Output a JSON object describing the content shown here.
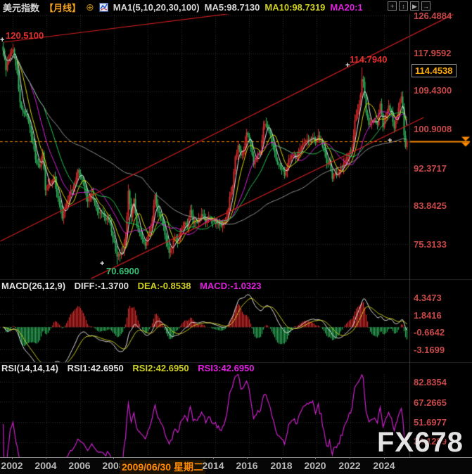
{
  "header": {
    "title": "美元指数",
    "period": "【月线】",
    "add_icon": "⊕",
    "ma_settings": "MA1(5,10,20,30,100)",
    "ma5": "MA5:98.7130",
    "ma10": "MA10:98.7319",
    "ma20": "MA20:1",
    "toolbar": {
      "move": "+",
      "scale": "↕",
      "play": "▶",
      "export": "→"
    }
  },
  "main": {
    "y_ticks": [
      "126.4884",
      "117.9592",
      "109.4300",
      "100.9008",
      "92.3717",
      "83.8425",
      "75.3133"
    ],
    "price_box": "114.4538",
    "annotations": {
      "high1": "120.5100",
      "high2": "114.7940",
      "low": "70.6900",
      "marker": "+"
    }
  },
  "macd": {
    "label": "MACD(26,12,9)",
    "diff": "DIFF:-1.3700",
    "dea": "DEA:-0.8538",
    "macd": "MACD:-1.0323",
    "y_ticks": [
      "4.3473",
      "1.8416",
      "-0.6642",
      "-3.1699"
    ]
  },
  "rsi": {
    "label": "RSI(14,14,14)",
    "rsi1": "RSI1:42.6950",
    "rsi2": "RSI2:42.6950",
    "rsi3": "RSI3:42.6950",
    "y_ticks": [
      "82.8354",
      "67.2665",
      "51.6977",
      "36.1289"
    ]
  },
  "xaxis": {
    "labels": [
      "2002",
      "2004",
      "2006",
      "2008",
      "2014",
      "2016",
      "2018",
      "2020",
      "2022",
      "2024"
    ],
    "selected_date": "2009/06/30 星期二"
  },
  "watermark": "FX678",
  "colors": {
    "up": "#dd2b2b",
    "down": "#2bb35a",
    "ma5": "#e8e8e8",
    "ma10": "#d9d900",
    "ma20": "#e020e0",
    "ma30": "#22cc55",
    "ma100": "#9a9a9a",
    "diff": "#e0e0e0",
    "dea": "#cfcf20",
    "rsi": "#cc22cc",
    "trend": "#cc1f1f",
    "accent": "#ff8c00",
    "grid": "#2e2e2e",
    "axis_label": "#c84848"
  },
  "chart_data": {
    "type": "candlestick",
    "title": "美元指数 月线 (US Dollar Index, monthly) with MACD(26,12,9) and RSI(14,14,14)",
    "start_month": "2001-06",
    "months": 288,
    "price_line_value": 98.31,
    "scale": {
      "y0": 21.7,
      "v0": 126.4884,
      "upp": 0.15737
    },
    "macd_scale": {
      "y_zero": 465.2,
      "upp": 0.10227
    },
    "rsi_scale": {
      "y_ref": 600,
      "v_ref": 51.6977,
      "upp": 0.546
    },
    "main_ticks": [
      126.4884,
      117.9592,
      109.43,
      100.9008,
      92.3717,
      83.8425,
      75.3133
    ],
    "macd_ticks": [
      4.3473,
      1.8416,
      -0.6642,
      -3.1699
    ],
    "rsi_ticks": [
      82.8354,
      67.2665,
      51.6977,
      36.1289
    ],
    "year_grid_months": [
      7,
      31,
      55,
      79,
      103,
      127,
      151,
      175,
      199,
      223,
      247,
      271
    ],
    "ma_periods": [
      5,
      10,
      20,
      30,
      100
    ],
    "macd_params": [
      26,
      12,
      9
    ],
    "rsi_period": 14,
    "close_anchors": [
      [
        0,
        118.6
      ],
      [
        2,
        114.2
      ],
      [
        4,
        116.6
      ],
      [
        7,
        118.9
      ],
      [
        10,
        113.5
      ],
      [
        12,
        107.0
      ],
      [
        15,
        104.5
      ],
      [
        18,
        102.6
      ],
      [
        21,
        98.5
      ],
      [
        23,
        94.2
      ],
      [
        26,
        92.5
      ],
      [
        28,
        95.8
      ],
      [
        30,
        87.4
      ],
      [
        33,
        88.8
      ],
      [
        36,
        90.4
      ],
      [
        39,
        85.6
      ],
      [
        42,
        81.0
      ],
      [
        44,
        83.5
      ],
      [
        47,
        86.4
      ],
      [
        50,
        88.2
      ],
      [
        53,
        91.9
      ],
      [
        56,
        89.8
      ],
      [
        58,
        87.9
      ],
      [
        60,
        84.8
      ],
      [
        63,
        86.6
      ],
      [
        66,
        83.4
      ],
      [
        69,
        82.3
      ],
      [
        72,
        81.2
      ],
      [
        75,
        80.7
      ],
      [
        78,
        76.7
      ],
      [
        81,
        72.5
      ],
      [
        83,
        72.8
      ],
      [
        85,
        73.4
      ],
      [
        87,
        76.8
      ],
      [
        89,
        87.2
      ],
      [
        91,
        81.3
      ],
      [
        93,
        85.4
      ],
      [
        95,
        79.5
      ],
      [
        98,
        77.0
      ],
      [
        101,
        74.9
      ],
      [
        104,
        77.9
      ],
      [
        106,
        81.1
      ],
      [
        108,
        86.3
      ],
      [
        110,
        82.6
      ],
      [
        112,
        81.0
      ],
      [
        114,
        79.4
      ],
      [
        116,
        75.8
      ],
      [
        118,
        73.3
      ],
      [
        120,
        74.3
      ],
      [
        122,
        76.9
      ],
      [
        124,
        75.9
      ],
      [
        127,
        78.9
      ],
      [
        129,
        80.1
      ],
      [
        131,
        79.0
      ],
      [
        133,
        82.9
      ],
      [
        135,
        79.9
      ],
      [
        138,
        80.1
      ],
      [
        141,
        82.0
      ],
      [
        144,
        80.2
      ],
      [
        147,
        81.3
      ],
      [
        150,
        80.3
      ],
      [
        153,
        80.0
      ],
      [
        156,
        79.8
      ],
      [
        159,
        81.4
      ],
      [
        161,
        85.9
      ],
      [
        163,
        88.2
      ],
      [
        165,
        94.8
      ],
      [
        167,
        97.4
      ],
      [
        169,
        95.1
      ],
      [
        171,
        96.3
      ],
      [
        173,
        100.2
      ],
      [
        175,
        98.7
      ],
      [
        178,
        93.1
      ],
      [
        181,
        95.6
      ],
      [
        183,
        95.9
      ],
      [
        185,
        101.5
      ],
      [
        186,
        102.2
      ],
      [
        189,
        100.4
      ],
      [
        192,
        97.2
      ],
      [
        195,
        93.2
      ],
      [
        198,
        92.1
      ],
      [
        200,
        90.6
      ],
      [
        203,
        94.3
      ],
      [
        206,
        95.1
      ],
      [
        209,
        94.6
      ],
      [
        212,
        97.0
      ],
      [
        215,
        98.2
      ],
      [
        218,
        98.9
      ],
      [
        220,
        99.2
      ],
      [
        222,
        98.0
      ],
      [
        224,
        99.6
      ],
      [
        226,
        98.6
      ],
      [
        228,
        96.4
      ],
      [
        230,
        93.4
      ],
      [
        232,
        94.0
      ],
      [
        234,
        89.9
      ],
      [
        236,
        91.0
      ],
      [
        238,
        91.3
      ],
      [
        240,
        92.4
      ],
      [
        242,
        93.3
      ],
      [
        244,
        94.2
      ],
      [
        246,
        95.7
      ],
      [
        248,
        96.6
      ],
      [
        250,
        103.0
      ],
      [
        252,
        105.2
      ],
      [
        254,
        108.7
      ],
      [
        255,
        112.2
      ],
      [
        256,
        111.6
      ],
      [
        258,
        104.7
      ],
      [
        260,
        101.9
      ],
      [
        262,
        102.7
      ],
      [
        264,
        103.1
      ],
      [
        266,
        101.9
      ],
      [
        268,
        106.7
      ],
      [
        270,
        101.4
      ],
      [
        272,
        104.1
      ],
      [
        274,
        106.3
      ],
      [
        276,
        104.9
      ],
      [
        278,
        101.2
      ],
      [
        280,
        103.9
      ],
      [
        283,
        108.3
      ],
      [
        284,
        106.0
      ],
      [
        285,
        99.6
      ],
      [
        286,
        97.0
      ],
      [
        287,
        98.3
      ]
    ],
    "special_points": [
      {
        "m": 0,
        "type": "high",
        "value": 120.51
      },
      {
        "m": 255,
        "type": "high",
        "value": 114.794
      },
      {
        "m": 81,
        "type": "low",
        "value": 70.69
      }
    ],
    "trendlines": [
      {
        "m1": -2,
        "v1": 75.93,
        "m2": 320,
        "v2": 126.7
      },
      {
        "m1": 0.5,
        "v1": 120.46,
        "m2": 163,
        "v2": 126.91
      },
      {
        "m1": 62.5,
        "v1": 67.57,
        "m2": 299,
        "v2": 103.62
      }
    ]
  }
}
